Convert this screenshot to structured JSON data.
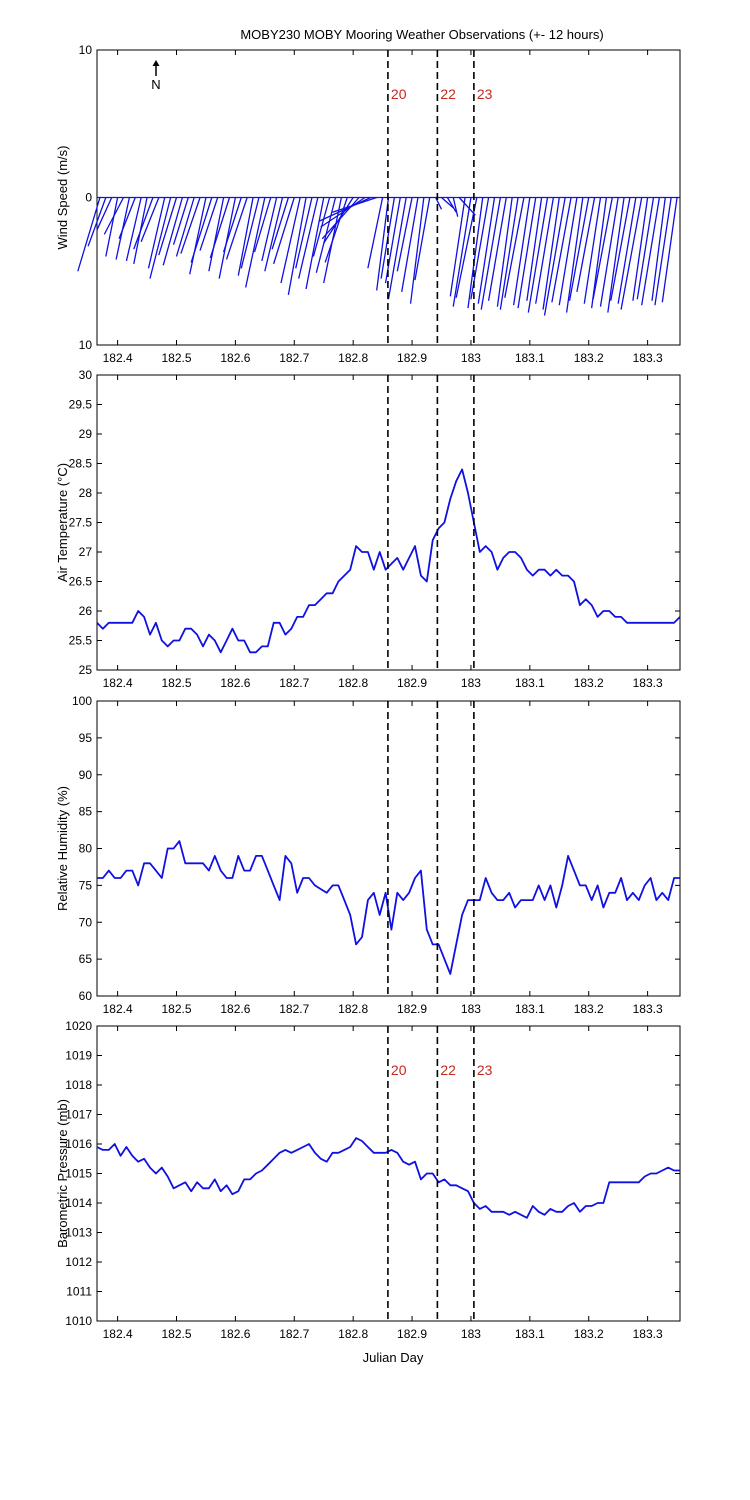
{
  "chart_data": {
    "title": "MOBY230 MOBY Mooring Weather Observations (+- 12 hours)",
    "type": "line",
    "xlabel": "Julian Day",
    "xlim": [
      182.365,
      183.355
    ],
    "xticks": [
      182.4,
      182.5,
      182.6,
      182.7,
      182.8,
      182.9,
      183,
      183.1,
      183.2,
      183.3
    ],
    "event_lines": [
      {
        "x": 182.859,
        "label": "20"
      },
      {
        "x": 182.943,
        "label": "22"
      },
      {
        "x": 183.005,
        "label": "23"
      }
    ],
    "panels": [
      {
        "type": "stick",
        "ylabel": "Wind Speed (m/s)",
        "ylim": [
          -10,
          10
        ],
        "yticks": [
          10,
          0,
          10
        ],
        "north_arrow": "N",
        "show_event_labels": true,
        "x": [
          182.37,
          182.38,
          182.39,
          182.4,
          182.41,
          182.42,
          182.43,
          182.44,
          182.45,
          182.46,
          182.47,
          182.48,
          182.49,
          182.5,
          182.51,
          182.52,
          182.53,
          182.54,
          182.55,
          182.56,
          182.57,
          182.58,
          182.59,
          182.6,
          182.61,
          182.62,
          182.63,
          182.64,
          182.65,
          182.66,
          182.67,
          182.68,
          182.69,
          182.7,
          182.71,
          182.72,
          182.73,
          182.74,
          182.75,
          182.76,
          182.77,
          182.78,
          182.79,
          182.8,
          182.81,
          182.82,
          182.83,
          182.84,
          182.85,
          182.86,
          182.87,
          182.88,
          182.89,
          182.9,
          182.91,
          182.92,
          182.93,
          182.94,
          182.95,
          182.96,
          182.97,
          182.98,
          182.99,
          183.0,
          183.01,
          183.02,
          183.03,
          183.04,
          183.05,
          183.06,
          183.07,
          183.08,
          183.09,
          183.1,
          183.11,
          183.12,
          183.13,
          183.14,
          183.15,
          183.16,
          183.17,
          183.18,
          183.19,
          183.2,
          183.21,
          183.22,
          183.23,
          183.24,
          183.25,
          183.26,
          183.27,
          183.28,
          183.29,
          183.3,
          183.31,
          183.32,
          183.33,
          183.34,
          183.35
        ],
        "u": [
          -1.5,
          -1.2,
          -1.0,
          -0.8,
          -1.3,
          -0.9,
          -1.1,
          -1.0,
          -0.9,
          -1.3,
          -1.2,
          -1.1,
          -1.4,
          -1.2,
          -1.3,
          -1.0,
          -1.2,
          -1.3,
          -1.1,
          -1.4,
          -1.2,
          -1.0,
          -1.3,
          -1.1,
          -1.2,
          -1.4,
          -1.0,
          -1.2,
          -1.3,
          -1.1,
          -1.0,
          -1.2,
          -1.1,
          -1.4,
          -1.3,
          -1.2,
          -1.1,
          -1.3,
          -1.2,
          -1.1,
          -1.3,
          -1.2,
          -1.5,
          -2.0,
          -2.5,
          -3.0,
          -3.5,
          -3.0,
          -1.0,
          -0.8,
          -0.9,
          -1.0,
          -1.2,
          -1.0,
          -1.1,
          -0.9,
          -1.0,
          0.4,
          0.8,
          0.6,
          0.3,
          1.1,
          -1.0,
          -1.2,
          -1.4,
          -1.0,
          -1.2,
          -1.1,
          -1.3,
          -1.2,
          -1.0,
          -1.2,
          -1.3,
          -1.1,
          -1.2,
          -1.0,
          -1.3,
          -1.2,
          -1.1,
          -1.4,
          -1.3,
          -1.2,
          -1.1,
          -1.3,
          -1.2,
          -1.1,
          -1.0,
          -1.3,
          -1.2,
          -1.1,
          -1.3,
          -1.2,
          -1.4,
          -1.0,
          -1.1,
          -1.2,
          -0.9,
          -1.1,
          -1.0
        ],
        "v": [
          -5.0,
          -3.3,
          -2.2,
          -4.0,
          -2.5,
          -4.2,
          -2.8,
          -4.3,
          -4.5,
          -3.5,
          -3.0,
          -4.8,
          -5.5,
          -3.9,
          -4.6,
          -3.2,
          -4.0,
          -3.8,
          -5.2,
          -4.4,
          -3.6,
          -5.0,
          -4.1,
          -5.5,
          -3.7,
          -4.2,
          -5.3,
          -4.8,
          -6.1,
          -3.7,
          -4.3,
          -5.0,
          -3.5,
          -4.5,
          -5.8,
          -6.6,
          -4.8,
          -5.5,
          -6.2,
          -4.0,
          -5.1,
          -5.8,
          -4.4,
          -3.1,
          -2.8,
          -2.0,
          -1.6,
          -1.0,
          -4.8,
          -6.3,
          -5.5,
          -5.8,
          -6.9,
          -5.0,
          -6.4,
          -7.2,
          -5.6,
          -0.8,
          -0.7,
          -1.0,
          -1.3,
          -1.2,
          -6.7,
          -7.4,
          -6.8,
          -7.5,
          -6.9,
          -7.2,
          -7.6,
          -7.0,
          -7.4,
          -7.6,
          -6.8,
          -7.3,
          -7.5,
          -7.0,
          -7.8,
          -7.2,
          -7.6,
          -8.0,
          -7.1,
          -7.3,
          -7.8,
          -7.0,
          -6.4,
          -7.2,
          -7.5,
          -6.9,
          -7.4,
          -7.8,
          -7.0,
          -7.2,
          -7.6,
          -7.0,
          -6.9,
          -7.3,
          -7.0,
          -7.3,
          -7.1
        ]
      },
      {
        "type": "line",
        "ylabel": "Air Temperature (°C)",
        "ylim": [
          25,
          30
        ],
        "yticks": [
          25,
          25.5,
          26,
          26.5,
          27,
          27.5,
          28,
          28.5,
          29,
          29.5,
          30
        ],
        "x": [
          182.365,
          182.375,
          182.385,
          182.395,
          182.405,
          182.415,
          182.425,
          182.435,
          182.445,
          182.455,
          182.465,
          182.475,
          182.485,
          182.495,
          182.505,
          182.515,
          182.525,
          182.535,
          182.545,
          182.555,
          182.565,
          182.575,
          182.585,
          182.595,
          182.605,
          182.615,
          182.625,
          182.635,
          182.645,
          182.655,
          182.665,
          182.675,
          182.685,
          182.695,
          182.705,
          182.715,
          182.725,
          182.735,
          182.745,
          182.755,
          182.765,
          182.775,
          182.785,
          182.795,
          182.805,
          182.815,
          182.825,
          182.835,
          182.845,
          182.855,
          182.865,
          182.875,
          182.885,
          182.895,
          182.905,
          182.915,
          182.925,
          182.935,
          182.945,
          182.955,
          182.965,
          182.975,
          182.985,
          182.995,
          183.005,
          183.015,
          183.025,
          183.035,
          183.045,
          183.055,
          183.065,
          183.075,
          183.085,
          183.095,
          183.105,
          183.115,
          183.125,
          183.135,
          183.145,
          183.155,
          183.165,
          183.175,
          183.185,
          183.195,
          183.205,
          183.215,
          183.225,
          183.235,
          183.245,
          183.255,
          183.265,
          183.275,
          183.285,
          183.295,
          183.305,
          183.315,
          183.325,
          183.335,
          183.345,
          183.355
        ],
        "y": [
          25.8,
          25.7,
          25.8,
          25.8,
          25.8,
          25.8,
          25.8,
          26.0,
          25.9,
          25.6,
          25.8,
          25.5,
          25.4,
          25.5,
          25.5,
          25.7,
          25.7,
          25.6,
          25.4,
          25.6,
          25.5,
          25.3,
          25.5,
          25.7,
          25.5,
          25.5,
          25.3,
          25.3,
          25.4,
          25.4,
          25.8,
          25.8,
          25.6,
          25.7,
          25.9,
          25.9,
          26.1,
          26.1,
          26.2,
          26.3,
          26.3,
          26.5,
          26.6,
          26.7,
          27.1,
          27.0,
          27.0,
          26.7,
          27.0,
          26.7,
          26.8,
          26.9,
          26.7,
          26.9,
          27.1,
          26.6,
          26.5,
          27.2,
          27.4,
          27.5,
          27.9,
          28.2,
          28.4,
          28.0,
          27.5,
          27.0,
          27.1,
          27.0,
          26.7,
          26.9,
          27.0,
          27.0,
          26.9,
          26.7,
          26.6,
          26.7,
          26.7,
          26.6,
          26.7,
          26.6,
          26.6,
          26.5,
          26.1,
          26.2,
          26.1,
          25.9,
          26.0,
          26.0,
          25.9,
          25.9,
          25.8,
          25.8,
          25.8,
          25.8,
          25.8,
          25.8,
          25.8,
          25.8,
          25.8,
          25.9
        ]
      },
      {
        "type": "line",
        "ylabel": "Relative Humidity (%)",
        "ylim": [
          60,
          100
        ],
        "yticks": [
          60,
          65,
          70,
          75,
          80,
          85,
          90,
          95,
          100
        ],
        "x": [
          182.365,
          182.375,
          182.385,
          182.395,
          182.405,
          182.415,
          182.425,
          182.435,
          182.445,
          182.455,
          182.465,
          182.475,
          182.485,
          182.495,
          182.505,
          182.515,
          182.525,
          182.535,
          182.545,
          182.555,
          182.565,
          182.575,
          182.585,
          182.595,
          182.605,
          182.615,
          182.625,
          182.635,
          182.645,
          182.655,
          182.665,
          182.675,
          182.685,
          182.695,
          182.705,
          182.715,
          182.725,
          182.735,
          182.745,
          182.755,
          182.765,
          182.775,
          182.785,
          182.795,
          182.805,
          182.815,
          182.825,
          182.835,
          182.845,
          182.855,
          182.865,
          182.875,
          182.885,
          182.895,
          182.905,
          182.915,
          182.925,
          182.935,
          182.945,
          182.955,
          182.965,
          182.975,
          182.985,
          182.995,
          183.005,
          183.015,
          183.025,
          183.035,
          183.045,
          183.055,
          183.065,
          183.075,
          183.085,
          183.095,
          183.105,
          183.115,
          183.125,
          183.135,
          183.145,
          183.155,
          183.165,
          183.175,
          183.185,
          183.195,
          183.205,
          183.215,
          183.225,
          183.235,
          183.245,
          183.255,
          183.265,
          183.275,
          183.285,
          183.295,
          183.305,
          183.315,
          183.325,
          183.335,
          183.345,
          183.355
        ],
        "y": [
          76,
          76,
          77,
          76,
          76,
          77,
          77,
          75,
          78,
          78,
          77,
          76,
          80,
          80,
          81,
          78,
          78,
          78,
          78,
          77,
          79,
          77,
          76,
          76,
          79,
          77,
          77,
          79,
          79,
          77,
          75,
          73,
          79,
          78,
          74,
          76,
          76,
          75,
          74.5,
          74,
          75,
          75,
          73,
          71,
          67,
          68,
          73,
          74,
          71,
          74,
          69,
          74,
          73,
          74,
          76,
          77,
          69,
          67,
          67,
          65,
          63,
          67,
          71,
          73,
          73,
          73,
          76,
          74,
          73,
          73,
          74,
          72,
          73,
          73,
          73,
          75,
          73,
          75,
          72,
          75,
          79,
          77,
          75,
          75,
          73,
          75,
          72,
          74,
          74,
          76,
          73,
          74,
          73,
          75,
          76,
          73,
          74,
          73,
          76,
          76
        ],
        "note": ""
      },
      {
        "type": "line",
        "ylabel": "Barometric Pressure (mb)",
        "ylim": [
          1010,
          1020
        ],
        "yticks": [
          1010,
          1011,
          1012,
          1013,
          1014,
          1015,
          1016,
          1017,
          1018,
          1019,
          1020
        ],
        "show_event_labels": true,
        "x": [
          182.365,
          182.375,
          182.385,
          182.395,
          182.405,
          182.415,
          182.425,
          182.435,
          182.445,
          182.455,
          182.465,
          182.475,
          182.485,
          182.495,
          182.505,
          182.515,
          182.525,
          182.535,
          182.545,
          182.555,
          182.565,
          182.575,
          182.585,
          182.595,
          182.605,
          182.615,
          182.625,
          182.635,
          182.645,
          182.655,
          182.665,
          182.675,
          182.685,
          182.695,
          182.705,
          182.715,
          182.725,
          182.735,
          182.745,
          182.755,
          182.765,
          182.775,
          182.785,
          182.795,
          182.805,
          182.815,
          182.825,
          182.835,
          182.845,
          182.855,
          182.865,
          182.875,
          182.885,
          182.895,
          182.905,
          182.915,
          182.925,
          182.935,
          182.945,
          182.955,
          182.965,
          182.975,
          182.985,
          182.995,
          183.005,
          183.015,
          183.025,
          183.035,
          183.045,
          183.055,
          183.065,
          183.075,
          183.085,
          183.095,
          183.105,
          183.115,
          183.125,
          183.135,
          183.145,
          183.155,
          183.165,
          183.175,
          183.185,
          183.195,
          183.205,
          183.215,
          183.225,
          183.235,
          183.245,
          183.255,
          183.265,
          183.275,
          183.285,
          183.295,
          183.305,
          183.315,
          183.325,
          183.335,
          183.345,
          183.355
        ],
        "y": [
          1015.9,
          1015.8,
          1015.8,
          1016.0,
          1015.6,
          1015.9,
          1015.6,
          1015.4,
          1015.5,
          1015.2,
          1015.0,
          1015.2,
          1014.9,
          1014.5,
          1014.6,
          1014.7,
          1014.4,
          1014.7,
          1014.5,
          1014.5,
          1014.8,
          1014.4,
          1014.6,
          1014.3,
          1014.4,
          1014.8,
          1014.8,
          1015.0,
          1015.1,
          1015.3,
          1015.5,
          1015.7,
          1015.8,
          1015.7,
          1015.8,
          1015.9,
          1016.0,
          1015.7,
          1015.5,
          1015.4,
          1015.7,
          1015.7,
          1015.8,
          1015.9,
          1016.2,
          1016.1,
          1015.9,
          1015.7,
          1015.7,
          1015.7,
          1015.8,
          1015.7,
          1015.4,
          1015.3,
          1015.4,
          1014.8,
          1015.0,
          1015.0,
          1014.7,
          1014.8,
          1014.6,
          1014.6,
          1014.5,
          1014.4,
          1014.0,
          1013.8,
          1013.9,
          1013.7,
          1013.7,
          1013.7,
          1013.6,
          1013.7,
          1013.6,
          1013.5,
          1013.9,
          1013.7,
          1013.6,
          1013.8,
          1013.7,
          1013.7,
          1013.9,
          1014.0,
          1013.7,
          1013.9,
          1013.9,
          1014.0,
          1014.0,
          1014.7,
          1014.7,
          1014.7,
          1014.7,
          1014.7,
          1014.7,
          1014.9,
          1015.0,
          1015.0,
          1015.1,
          1015.2,
          1015.1,
          1015.1
        ]
      }
    ]
  },
  "colors": {
    "series": "#1010e0",
    "event_label": "#c8281e",
    "axis": "#000000"
  }
}
